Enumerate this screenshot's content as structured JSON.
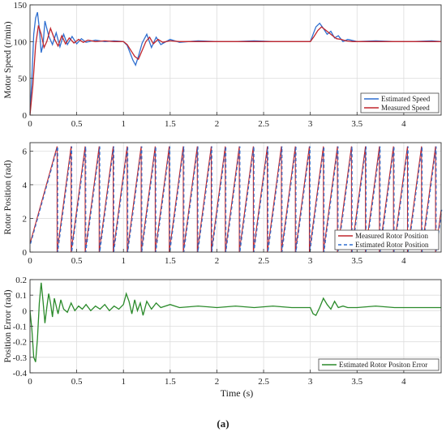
{
  "figure": {
    "caption": "(a)",
    "xlabel": "Time (s)"
  },
  "chart_data": [
    {
      "type": "line",
      "title": "",
      "xlabel": "",
      "ylabel": "Motor Speed (r/min)",
      "xlim": [
        0,
        4.4
      ],
      "ylim": [
        0,
        150
      ],
      "xticks": [
        0,
        0.5,
        1,
        1.5,
        2,
        2.5,
        3,
        3.5,
        4
      ],
      "yticks": [
        0,
        50,
        100,
        150
      ],
      "grid": true,
      "legend": "bottom-right",
      "series": [
        {
          "name": "Estimated Speed",
          "color": "#2f6fd0",
          "x": [
            0,
            0.02,
            0.04,
            0.06,
            0.08,
            0.1,
            0.12,
            0.14,
            0.16,
            0.2,
            0.24,
            0.28,
            0.32,
            0.36,
            0.4,
            0.45,
            0.5,
            0.55,
            0.6,
            0.7,
            0.8,
            0.9,
            1.0,
            1.04,
            1.07,
            1.1,
            1.13,
            1.16,
            1.2,
            1.25,
            1.3,
            1.35,
            1.4,
            1.5,
            1.6,
            1.8,
            2.0,
            2.2,
            2.4,
            2.6,
            2.8,
            3.0,
            3.03,
            3.06,
            3.1,
            3.14,
            3.18,
            3.22,
            3.26,
            3.3,
            3.35,
            3.4,
            3.5,
            3.7,
            3.9,
            4.1,
            4.3,
            4.4
          ],
          "values": [
            2,
            50,
            110,
            132,
            140,
            118,
            85,
            96,
            128,
            108,
            96,
            112,
            93,
            110,
            96,
            107,
            97,
            104,
            99,
            102,
            100,
            101,
            100,
            95,
            85,
            75,
            68,
            80,
            98,
            110,
            92,
            106,
            96,
            103,
            99,
            101,
            100,
            100,
            101,
            100,
            100,
            100,
            110,
            120,
            125,
            118,
            110,
            114,
            105,
            108,
            100,
            103,
            100,
            101,
            100,
            100,
            101,
            100
          ]
        },
        {
          "name": "Measured Speed",
          "color": "#c0262d",
          "x": [
            0,
            0.03,
            0.06,
            0.09,
            0.12,
            0.15,
            0.18,
            0.22,
            0.26,
            0.3,
            0.34,
            0.38,
            0.42,
            0.47,
            0.52,
            0.57,
            0.62,
            0.7,
            0.8,
            0.9,
            1.0,
            1.04,
            1.08,
            1.12,
            1.16,
            1.2,
            1.24,
            1.28,
            1.32,
            1.37,
            1.42,
            1.5,
            1.6,
            1.8,
            2.0,
            2.2,
            2.4,
            2.6,
            2.8,
            3.0,
            3.04,
            3.08,
            3.12,
            3.16,
            3.2,
            3.24,
            3.28,
            3.33,
            3.38,
            3.45,
            3.6,
            3.8,
            4.0,
            4.2,
            4.4
          ],
          "values": [
            0,
            40,
            95,
            122,
            110,
            92,
            100,
            118,
            104,
            94,
            108,
            97,
            105,
            98,
            103,
            99,
            102,
            100,
            101,
            100,
            100,
            96,
            88,
            80,
            76,
            88,
            100,
            106,
            97,
            103,
            99,
            101,
            100,
            100,
            100,
            100,
            100,
            100,
            100,
            100,
            107,
            115,
            120,
            116,
            112,
            108,
            104,
            103,
            101,
            100,
            100,
            100,
            100,
            100,
            100
          ]
        }
      ]
    },
    {
      "type": "line",
      "title": "",
      "xlabel": "",
      "ylabel": "Rotor Position (rad)",
      "xlim": [
        0,
        4.4
      ],
      "ylim": [
        0,
        6.5
      ],
      "xticks": [
        0,
        0.5,
        1,
        1.5,
        2,
        2.5,
        3,
        3.5,
        4
      ],
      "yticks": [
        0,
        2,
        4,
        6
      ],
      "grid": true,
      "legend": "bottom-right",
      "sawtooth": {
        "min": 0,
        "max": 6.28,
        "first_start_value": 0.5,
        "wrap_times": [
          0.29,
          0.44,
          0.59,
          0.74,
          0.89,
          1.04,
          1.19,
          1.34,
          1.49,
          1.64,
          1.79,
          1.94,
          2.09,
          2.24,
          2.39,
          2.54,
          2.69,
          2.84,
          2.99,
          3.14,
          3.29,
          3.44,
          3.59,
          3.74,
          3.89,
          4.04,
          4.19,
          4.34
        ]
      },
      "series": [
        {
          "name": "Measured Rotor Position",
          "color": "#c0262d",
          "dash": "none"
        },
        {
          "name": "Estimated Rotor Position",
          "color": "#2f6fd0",
          "dash": "4,3"
        }
      ]
    },
    {
      "type": "line",
      "title": "",
      "xlabel": "Time (s)",
      "ylabel": "Position Error (rad)",
      "xlim": [
        0,
        4.4
      ],
      "ylim": [
        -0.4,
        0.2
      ],
      "xticks": [
        0,
        0.5,
        1,
        1.5,
        2,
        2.5,
        3,
        3.5,
        4
      ],
      "yticks": [
        -0.4,
        -0.3,
        -0.2,
        -0.1,
        0,
        0.1,
        0.2
      ],
      "grid": true,
      "legend": "bottom-right",
      "series": [
        {
          "name": "Estimated Rotor Positon Error",
          "color": "#2a8a2a",
          "x": [
            0,
            0.02,
            0.04,
            0.06,
            0.08,
            0.1,
            0.12,
            0.14,
            0.16,
            0.18,
            0.2,
            0.22,
            0.24,
            0.26,
            0.28,
            0.3,
            0.33,
            0.36,
            0.4,
            0.44,
            0.48,
            0.52,
            0.56,
            0.6,
            0.65,
            0.7,
            0.75,
            0.8,
            0.85,
            0.9,
            0.95,
            1.0,
            1.03,
            1.06,
            1.09,
            1.12,
            1.15,
            1.18,
            1.21,
            1.25,
            1.3,
            1.35,
            1.4,
            1.5,
            1.6,
            1.8,
            2.0,
            2.2,
            2.4,
            2.6,
            2.8,
            3.0,
            3.03,
            3.06,
            3.1,
            3.14,
            3.18,
            3.22,
            3.26,
            3.3,
            3.35,
            3.4,
            3.5,
            3.7,
            3.9,
            4.1,
            4.3,
            4.4
          ],
          "values": [
            0,
            -0.12,
            -0.3,
            -0.33,
            -0.18,
            0.05,
            0.18,
            0.06,
            -0.08,
            0.02,
            0.11,
            0.05,
            -0.04,
            0.08,
            0.03,
            -0.02,
            0.07,
            0.01,
            -0.01,
            0.05,
            0.0,
            0.03,
            0.01,
            0.04,
            0.0,
            0.03,
            0.01,
            0.04,
            0.0,
            0.03,
            0.01,
            0.04,
            0.11,
            0.06,
            -0.02,
            0.07,
            0.0,
            0.05,
            -0.03,
            0.06,
            0.01,
            0.05,
            0.02,
            0.04,
            0.02,
            0.03,
            0.02,
            0.03,
            0.02,
            0.03,
            0.02,
            0.02,
            -0.02,
            -0.03,
            0.02,
            0.08,
            0.04,
            0.01,
            0.06,
            0.02,
            0.03,
            0.02,
            0.02,
            0.03,
            0.02,
            0.02,
            0.02,
            0.02
          ]
        }
      ]
    }
  ]
}
